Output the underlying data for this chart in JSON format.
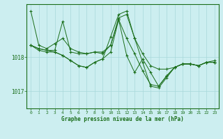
{
  "bg_color": "#cceef0",
  "line_color": "#1a6e1a",
  "grid_color": "#a8d8da",
  "xlabel": "Graphe pression niveau de la mer (hPa)",
  "xlabel_color": "#1a6e1a",
  "tick_color": "#1a6e1a",
  "ylim": [
    1016.5,
    1019.55
  ],
  "xlim": [
    -0.5,
    23.5
  ],
  "yticks": [
    1017,
    1018
  ],
  "xticks": [
    0,
    1,
    2,
    3,
    4,
    5,
    6,
    7,
    8,
    9,
    10,
    11,
    12,
    13,
    14,
    15,
    16,
    17,
    18,
    19,
    20,
    21,
    22,
    23
  ],
  "series": [
    [
      1019.35,
      1018.35,
      1018.25,
      1018.4,
      1018.55,
      1018.25,
      1018.15,
      1018.1,
      1018.15,
      1018.15,
      1018.35,
      1019.15,
      1019.25,
      1018.55,
      1018.1,
      1017.75,
      1017.65,
      1017.65,
      1017.7,
      1017.8,
      1017.8,
      1017.75,
      1017.85,
      1017.85
    ],
    [
      1018.35,
      1018.25,
      1018.2,
      1018.2,
      1019.05,
      1018.15,
      1018.1,
      1018.1,
      1018.15,
      1018.1,
      1018.35,
      1019.1,
      1018.55,
      1018.1,
      1017.6,
      1017.2,
      1017.15,
      1017.45,
      1017.7,
      1017.8,
      1017.8,
      1017.75,
      1017.85,
      1017.85
    ],
    [
      1018.35,
      1018.25,
      1018.2,
      1018.15,
      1018.05,
      1017.9,
      1017.75,
      1017.7,
      1017.85,
      1017.95,
      1018.15,
      1019.1,
      1018.05,
      1017.55,
      1017.95,
      1017.55,
      1017.15,
      1017.45,
      1017.7,
      1017.8,
      1017.8,
      1017.75,
      1017.85,
      1017.85
    ],
    [
      1018.35,
      1018.2,
      1018.15,
      1018.15,
      1018.05,
      1017.9,
      1017.75,
      1017.7,
      1017.85,
      1017.95,
      1018.6,
      1019.25,
      1019.35,
      1018.55,
      1017.85,
      1017.15,
      1017.1,
      1017.4,
      1017.7,
      1017.8,
      1017.8,
      1017.75,
      1017.85,
      1017.9
    ]
  ]
}
